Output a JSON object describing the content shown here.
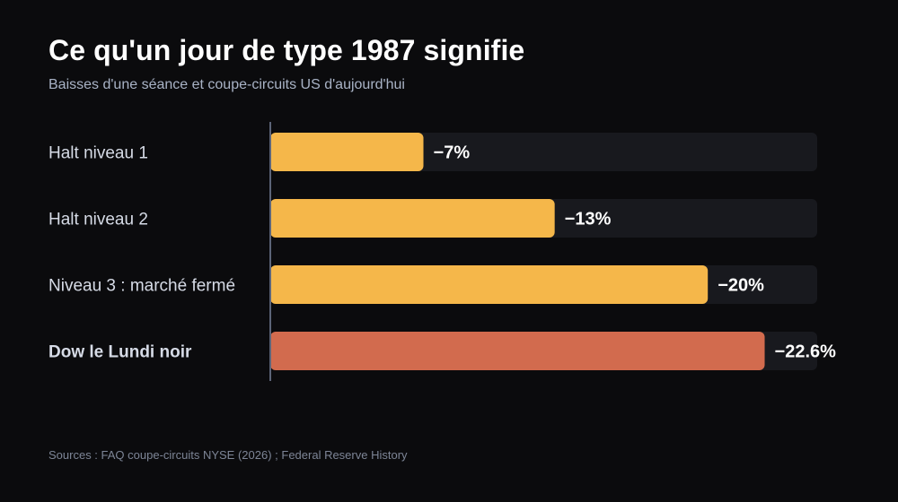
{
  "header": {
    "title": "Ce qu'un jour de type 1987 signifie",
    "subtitle": "Baisses d'une séance et coupe-circuits US d'aujourd'hui"
  },
  "footer": {
    "source": "Sources : FAQ coupe-circuits NYSE (2026) ; Federal Reserve History"
  },
  "colors": {
    "background": "#0b0b0d",
    "track": "#18191e",
    "halt_bar": "#f5b74a",
    "highlight_bar": "#d26b4e",
    "axis_line": "#5c6478",
    "label_text": "#d6dbe6",
    "value_text": "#ffffff"
  },
  "chart_data": {
    "type": "bar",
    "orientation": "horizontal",
    "categories": [
      "Halt niveau 1",
      "Halt niveau 2",
      "Niveau 3 : marché fermé",
      "Dow le Lundi noir"
    ],
    "values": [
      -7,
      -13,
      -20,
      -22.6
    ],
    "value_labels": [
      "−7%",
      "−13%",
      "−20%",
      "−22.6%"
    ],
    "highlight_index": 3,
    "xlim": [
      0,
      25
    ],
    "grid": false,
    "legend": "none"
  }
}
